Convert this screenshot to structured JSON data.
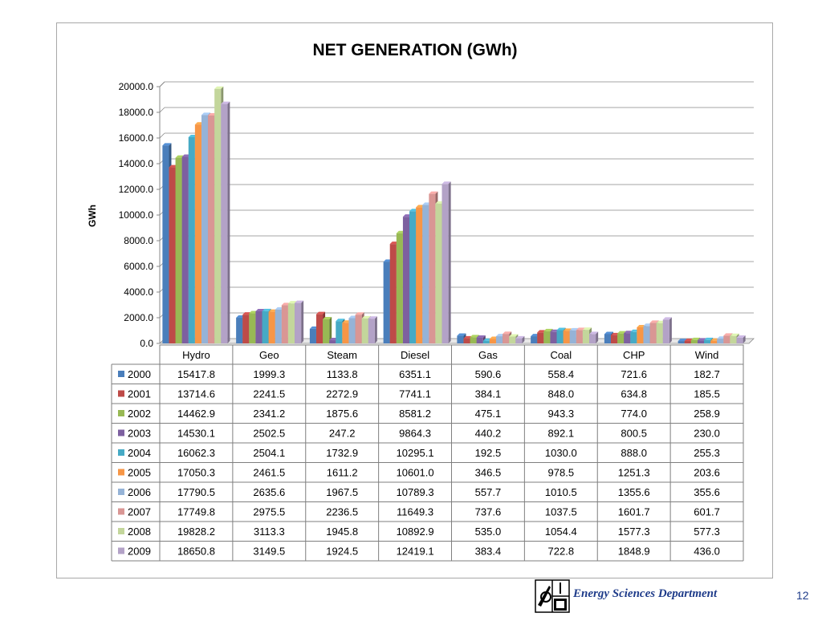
{
  "chart_data": {
    "type": "bar",
    "title": "NET GENERATION (GWh)",
    "xlabel": "",
    "ylabel": "GWh",
    "ylim": [
      0,
      20000
    ],
    "ytick_step": 2000,
    "ytick_labels": [
      "0.0",
      "2000.0",
      "4000.0",
      "6000.0",
      "8000.0",
      "10000.0",
      "12000.0",
      "14000.0",
      "16000.0",
      "18000.0",
      "20000.0"
    ],
    "grid": true,
    "legend": "data-table-left",
    "categories": [
      "Hydro",
      "Geo",
      "Steam",
      "Diesel",
      "Gas",
      "Coal",
      "CHP",
      "Wind"
    ],
    "series": [
      {
        "name": "2000",
        "color": "#4a7ebb",
        "values": [
          15417.8,
          1999.3,
          1133.8,
          6351.1,
          590.6,
          558.4,
          721.6,
          182.7
        ],
        "labels": [
          "15417.8",
          "1999.3",
          "1133.8",
          "6351.1",
          "590.6",
          "558.4",
          "721.6",
          "182.7"
        ]
      },
      {
        "name": "2001",
        "color": "#be4b48",
        "values": [
          13714.6,
          2241.5,
          2272.9,
          7741.1,
          384.1,
          848.0,
          634.8,
          185.5
        ],
        "labels": [
          "13714.6",
          "2241.5",
          "2272.9",
          "7741.1",
          "384.1",
          "848.0",
          "634.8",
          "185.5"
        ]
      },
      {
        "name": "2002",
        "color": "#98b954",
        "values": [
          14462.9,
          2341.2,
          1875.6,
          8581.2,
          475.1,
          943.3,
          774.0,
          258.9
        ],
        "labels": [
          "14462.9",
          "2341.2",
          "1875.6",
          "8581.2",
          "475.1",
          "943.3",
          "774.0",
          "258.9"
        ]
      },
      {
        "name": "2003",
        "color": "#7d60a0",
        "values": [
          14530.1,
          2502.5,
          247.2,
          9864.3,
          440.2,
          892.1,
          800.5,
          230.0
        ],
        "labels": [
          "14530.1",
          "2502.5",
          "247.2",
          "9864.3",
          "440.2",
          "892.1",
          "800.5",
          "230.0"
        ]
      },
      {
        "name": "2004",
        "color": "#46aac5",
        "values": [
          16062.3,
          2504.1,
          1732.9,
          10295.1,
          192.5,
          1030.0,
          888.0,
          255.3
        ],
        "labels": [
          "16062.3",
          "2504.1",
          "1732.9",
          "10295.1",
          "192.5",
          "1030.0",
          "888.0",
          "255.3"
        ]
      },
      {
        "name": "2005",
        "color": "#f79646",
        "values": [
          17050.3,
          2461.5,
          1611.2,
          10601.0,
          346.5,
          978.5,
          1251.3,
          203.6
        ],
        "labels": [
          "17050.3",
          "2461.5",
          "1611.2",
          "10601.0",
          "346.5",
          "978.5",
          "1251.3",
          "203.6"
        ]
      },
      {
        "name": "2006",
        "color": "#95b3d7",
        "values": [
          17790.5,
          2635.6,
          1967.5,
          10789.3,
          557.7,
          1010.5,
          1355.6,
          355.6
        ],
        "labels": [
          "17790.5",
          "2635.6",
          "1967.5",
          "10789.3",
          "557.7",
          "1010.5",
          "1355.6",
          "355.6"
        ]
      },
      {
        "name": "2007",
        "color": "#d99694",
        "values": [
          17749.8,
          2975.5,
          2236.5,
          11649.3,
          737.6,
          1037.5,
          1601.7,
          601.7
        ],
        "labels": [
          "17749.8",
          "2975.5",
          "2236.5",
          "11649.3",
          "737.6",
          "1037.5",
          "1601.7",
          "601.7"
        ]
      },
      {
        "name": "2008",
        "color": "#c3d69b",
        "values": [
          19828.2,
          3113.3,
          1945.8,
          10892.9,
          535.0,
          1054.4,
          1577.3,
          577.3
        ],
        "labels": [
          "19828.2",
          "3113.3",
          "1945.8",
          "10892.9",
          "535.0",
          "1054.4",
          "1577.3",
          "577.3"
        ]
      },
      {
        "name": "2009",
        "color": "#b3a2c7",
        "values": [
          18650.8,
          3149.5,
          1924.5,
          12419.1,
          383.4,
          722.8,
          1848.9,
          436.0
        ],
        "labels": [
          "18650.8",
          "3149.5",
          "1924.5",
          "12419.1",
          "383.4",
          "722.8",
          "1848.9",
          "436.0"
        ]
      }
    ]
  },
  "footer": {
    "department": "Energy Sciences Department",
    "page_number": "12",
    "logo_icon": "energy-sciences-logo-icon"
  }
}
